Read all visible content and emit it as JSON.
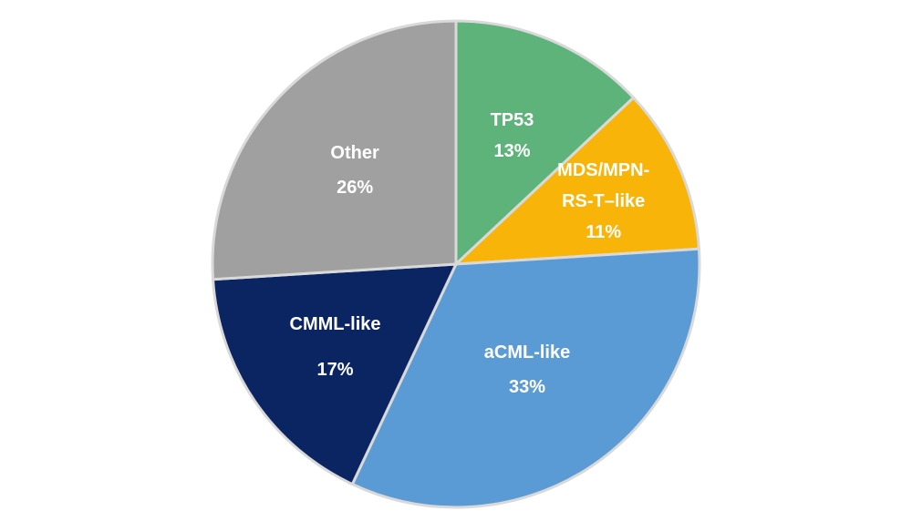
{
  "chart_data": {
    "type": "pie",
    "title": "",
    "start": "top",
    "direction": "clockwise",
    "legend": "none",
    "slices": [
      {
        "name": "TP53",
        "label_lines": [
          "TP53",
          "13%"
        ],
        "value": 13,
        "color": "#5db37a"
      },
      {
        "name": "MDS/MPN-RS-T–like",
        "label_lines": [
          "MDS/MPN-",
          "RS-T–like",
          "11%"
        ],
        "value": 11,
        "color": "#f9b40a"
      },
      {
        "name": "aCML-like",
        "label_lines": [
          "aCML-like",
          "33%"
        ],
        "value": 33,
        "color": "#5b9bd5"
      },
      {
        "name": "CMML-like",
        "label_lines": [
          "CMML-like",
          "17%"
        ],
        "value": 17,
        "color": "#0b2462"
      },
      {
        "name": "Other",
        "label_lines": [
          "Other",
          "26%"
        ],
        "value": 26,
        "color": "#a0a0a0"
      }
    ]
  }
}
